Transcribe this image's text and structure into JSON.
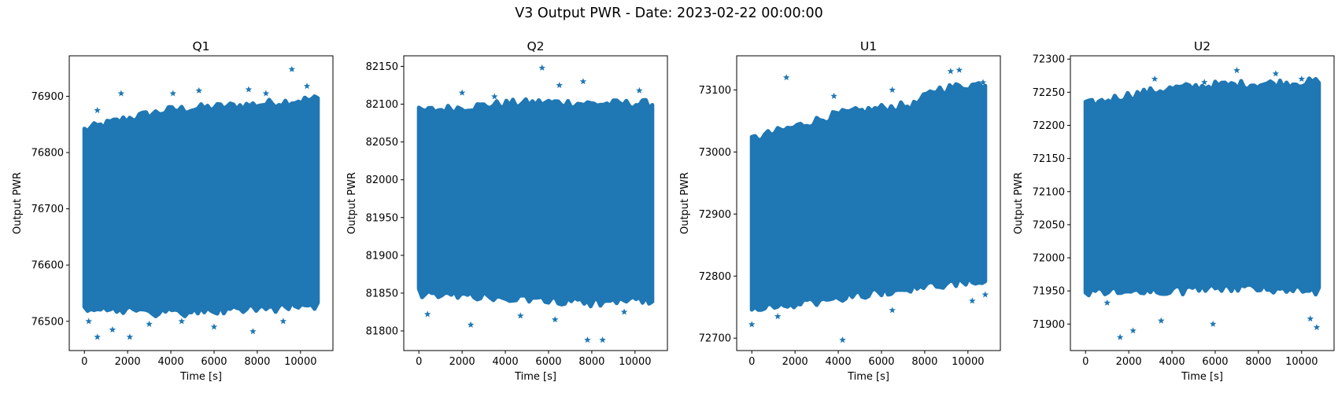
{
  "figure": {
    "suptitle": "V3 Output PWR - Date: 2023-02-22 00:00:00"
  },
  "chart_data": [
    {
      "type": "scatter",
      "title": "Q1",
      "xlabel": "Time [s]",
      "ylabel": "Output PWR",
      "marker": "*",
      "color": "#1f77b4",
      "xlim": [
        -700,
        11500
      ],
      "ylim": [
        76448,
        76972
      ],
      "xticks": [
        0,
        2000,
        4000,
        6000,
        8000,
        10000
      ],
      "yticks": [
        76500,
        76600,
        76700,
        76800,
        76900
      ],
      "x_range": [
        0,
        10800
      ],
      "band_lower": [
        [
          0,
          76525
        ],
        [
          2000,
          76520
        ],
        [
          4000,
          76515
        ],
        [
          6000,
          76520
        ],
        [
          8000,
          76522
        ],
        [
          10800,
          76530
        ]
      ],
      "band_upper": [
        [
          0,
          76840
        ],
        [
          2000,
          76860
        ],
        [
          4000,
          76875
        ],
        [
          6000,
          76880
        ],
        [
          8000,
          76885
        ],
        [
          10800,
          76895
        ]
      ],
      "outliers": [
        [
          9600,
          76948
        ],
        [
          10300,
          76918
        ],
        [
          7600,
          76912
        ],
        [
          5300,
          76910
        ],
        [
          1700,
          76905
        ],
        [
          4100,
          76905
        ],
        [
          8400,
          76905
        ],
        [
          600,
          76875
        ],
        [
          200,
          76500
        ],
        [
          600,
          76472
        ],
        [
          1300,
          76485
        ],
        [
          2100,
          76472
        ],
        [
          3000,
          76495
        ],
        [
          4500,
          76500
        ],
        [
          6000,
          76490
        ],
        [
          7800,
          76482
        ],
        [
          9200,
          76500
        ]
      ]
    },
    {
      "type": "scatter",
      "title": "Q2",
      "xlabel": "Time [s]",
      "ylabel": "Output PWR",
      "marker": "*",
      "color": "#1f77b4",
      "xlim": [
        -700,
        11500
      ],
      "ylim": [
        81774,
        82164
      ],
      "xticks": [
        0,
        2000,
        4000,
        6000,
        8000,
        10000
      ],
      "yticks": [
        81800,
        81850,
        81900,
        81950,
        82000,
        82050,
        82100,
        82150
      ],
      "x_range": [
        0,
        10800
      ],
      "band_lower": [
        [
          0,
          81850
        ],
        [
          2000,
          81848
        ],
        [
          4000,
          81845
        ],
        [
          6000,
          81840
        ],
        [
          8000,
          81838
        ],
        [
          10800,
          81840
        ]
      ],
      "band_upper": [
        [
          0,
          82090
        ],
        [
          2000,
          82095
        ],
        [
          4000,
          82100
        ],
        [
          6000,
          82102
        ],
        [
          8000,
          82100
        ],
        [
          10800,
          82100
        ]
      ],
      "outliers": [
        [
          5700,
          82148
        ],
        [
          7600,
          82130
        ],
        [
          6500,
          82125
        ],
        [
          2000,
          82115
        ],
        [
          10200,
          82118
        ],
        [
          3500,
          82110
        ],
        [
          2400,
          81808
        ],
        [
          7800,
          81788
        ],
        [
          8500,
          81788
        ],
        [
          6300,
          81815
        ],
        [
          400,
          81822
        ],
        [
          4700,
          81820
        ],
        [
          9500,
          81825
        ]
      ]
    },
    {
      "type": "scatter",
      "title": "U1",
      "xlabel": "Time [s]",
      "ylabel": "Output PWR",
      "marker": "*",
      "color": "#1f77b4",
      "xlim": [
        -700,
        11500
      ],
      "ylim": [
        72680,
        73155
      ],
      "xticks": [
        0,
        2000,
        4000,
        6000,
        8000,
        10000
      ],
      "yticks": [
        72700,
        72800,
        72900,
        73000,
        73100
      ],
      "x_range": [
        0,
        10800
      ],
      "band_lower": [
        [
          0,
          72745
        ],
        [
          2000,
          72755
        ],
        [
          4000,
          72765
        ],
        [
          6000,
          72775
        ],
        [
          8000,
          72785
        ],
        [
          10800,
          72795
        ]
      ],
      "band_upper": [
        [
          0,
          73020
        ],
        [
          2000,
          73040
        ],
        [
          4000,
          73060
        ],
        [
          6000,
          73070
        ],
        [
          7500,
          73075
        ],
        [
          8500,
          73100
        ],
        [
          10800,
          73110
        ]
      ],
      "outliers": [
        [
          1600,
          73120
        ],
        [
          9200,
          73130
        ],
        [
          9600,
          73132
        ],
        [
          3800,
          73090
        ],
        [
          6500,
          73100
        ],
        [
          10700,
          73112
        ],
        [
          4200,
          72697
        ],
        [
          0,
          72722
        ],
        [
          1200,
          72735
        ],
        [
          6500,
          72745
        ],
        [
          10200,
          72760
        ],
        [
          10800,
          72770
        ]
      ]
    },
    {
      "type": "scatter",
      "title": "U2",
      "xlabel": "Time [s]",
      "ylabel": "Output PWR",
      "marker": "*",
      "color": "#1f77b4",
      "xlim": [
        -700,
        11500
      ],
      "ylim": [
        71860,
        72305
      ],
      "xticks": [
        0,
        2000,
        4000,
        6000,
        8000,
        10000
      ],
      "yticks": [
        71900,
        71950,
        72000,
        72050,
        72100,
        72150,
        72200,
        72250,
        72300
      ],
      "x_range": [
        0,
        10800
      ],
      "band_lower": [
        [
          0,
          71950
        ],
        [
          2000,
          71950
        ],
        [
          4000,
          71950
        ],
        [
          6000,
          71955
        ],
        [
          8000,
          71955
        ],
        [
          10800,
          71950
        ]
      ],
      "band_upper": [
        [
          0,
          72230
        ],
        [
          2000,
          72245
        ],
        [
          4000,
          72255
        ],
        [
          6000,
          72260
        ],
        [
          8000,
          72262
        ],
        [
          10800,
          72265
        ]
      ],
      "outliers": [
        [
          7000,
          72283
        ],
        [
          8800,
          72278
        ],
        [
          3200,
          72270
        ],
        [
          10000,
          72270
        ],
        [
          5500,
          72265
        ],
        [
          1600,
          71880
        ],
        [
          2200,
          71890
        ],
        [
          5900,
          71900
        ],
        [
          10400,
          71908
        ],
        [
          10700,
          71895
        ],
        [
          3500,
          71905
        ],
        [
          1000,
          71932
        ]
      ]
    }
  ]
}
